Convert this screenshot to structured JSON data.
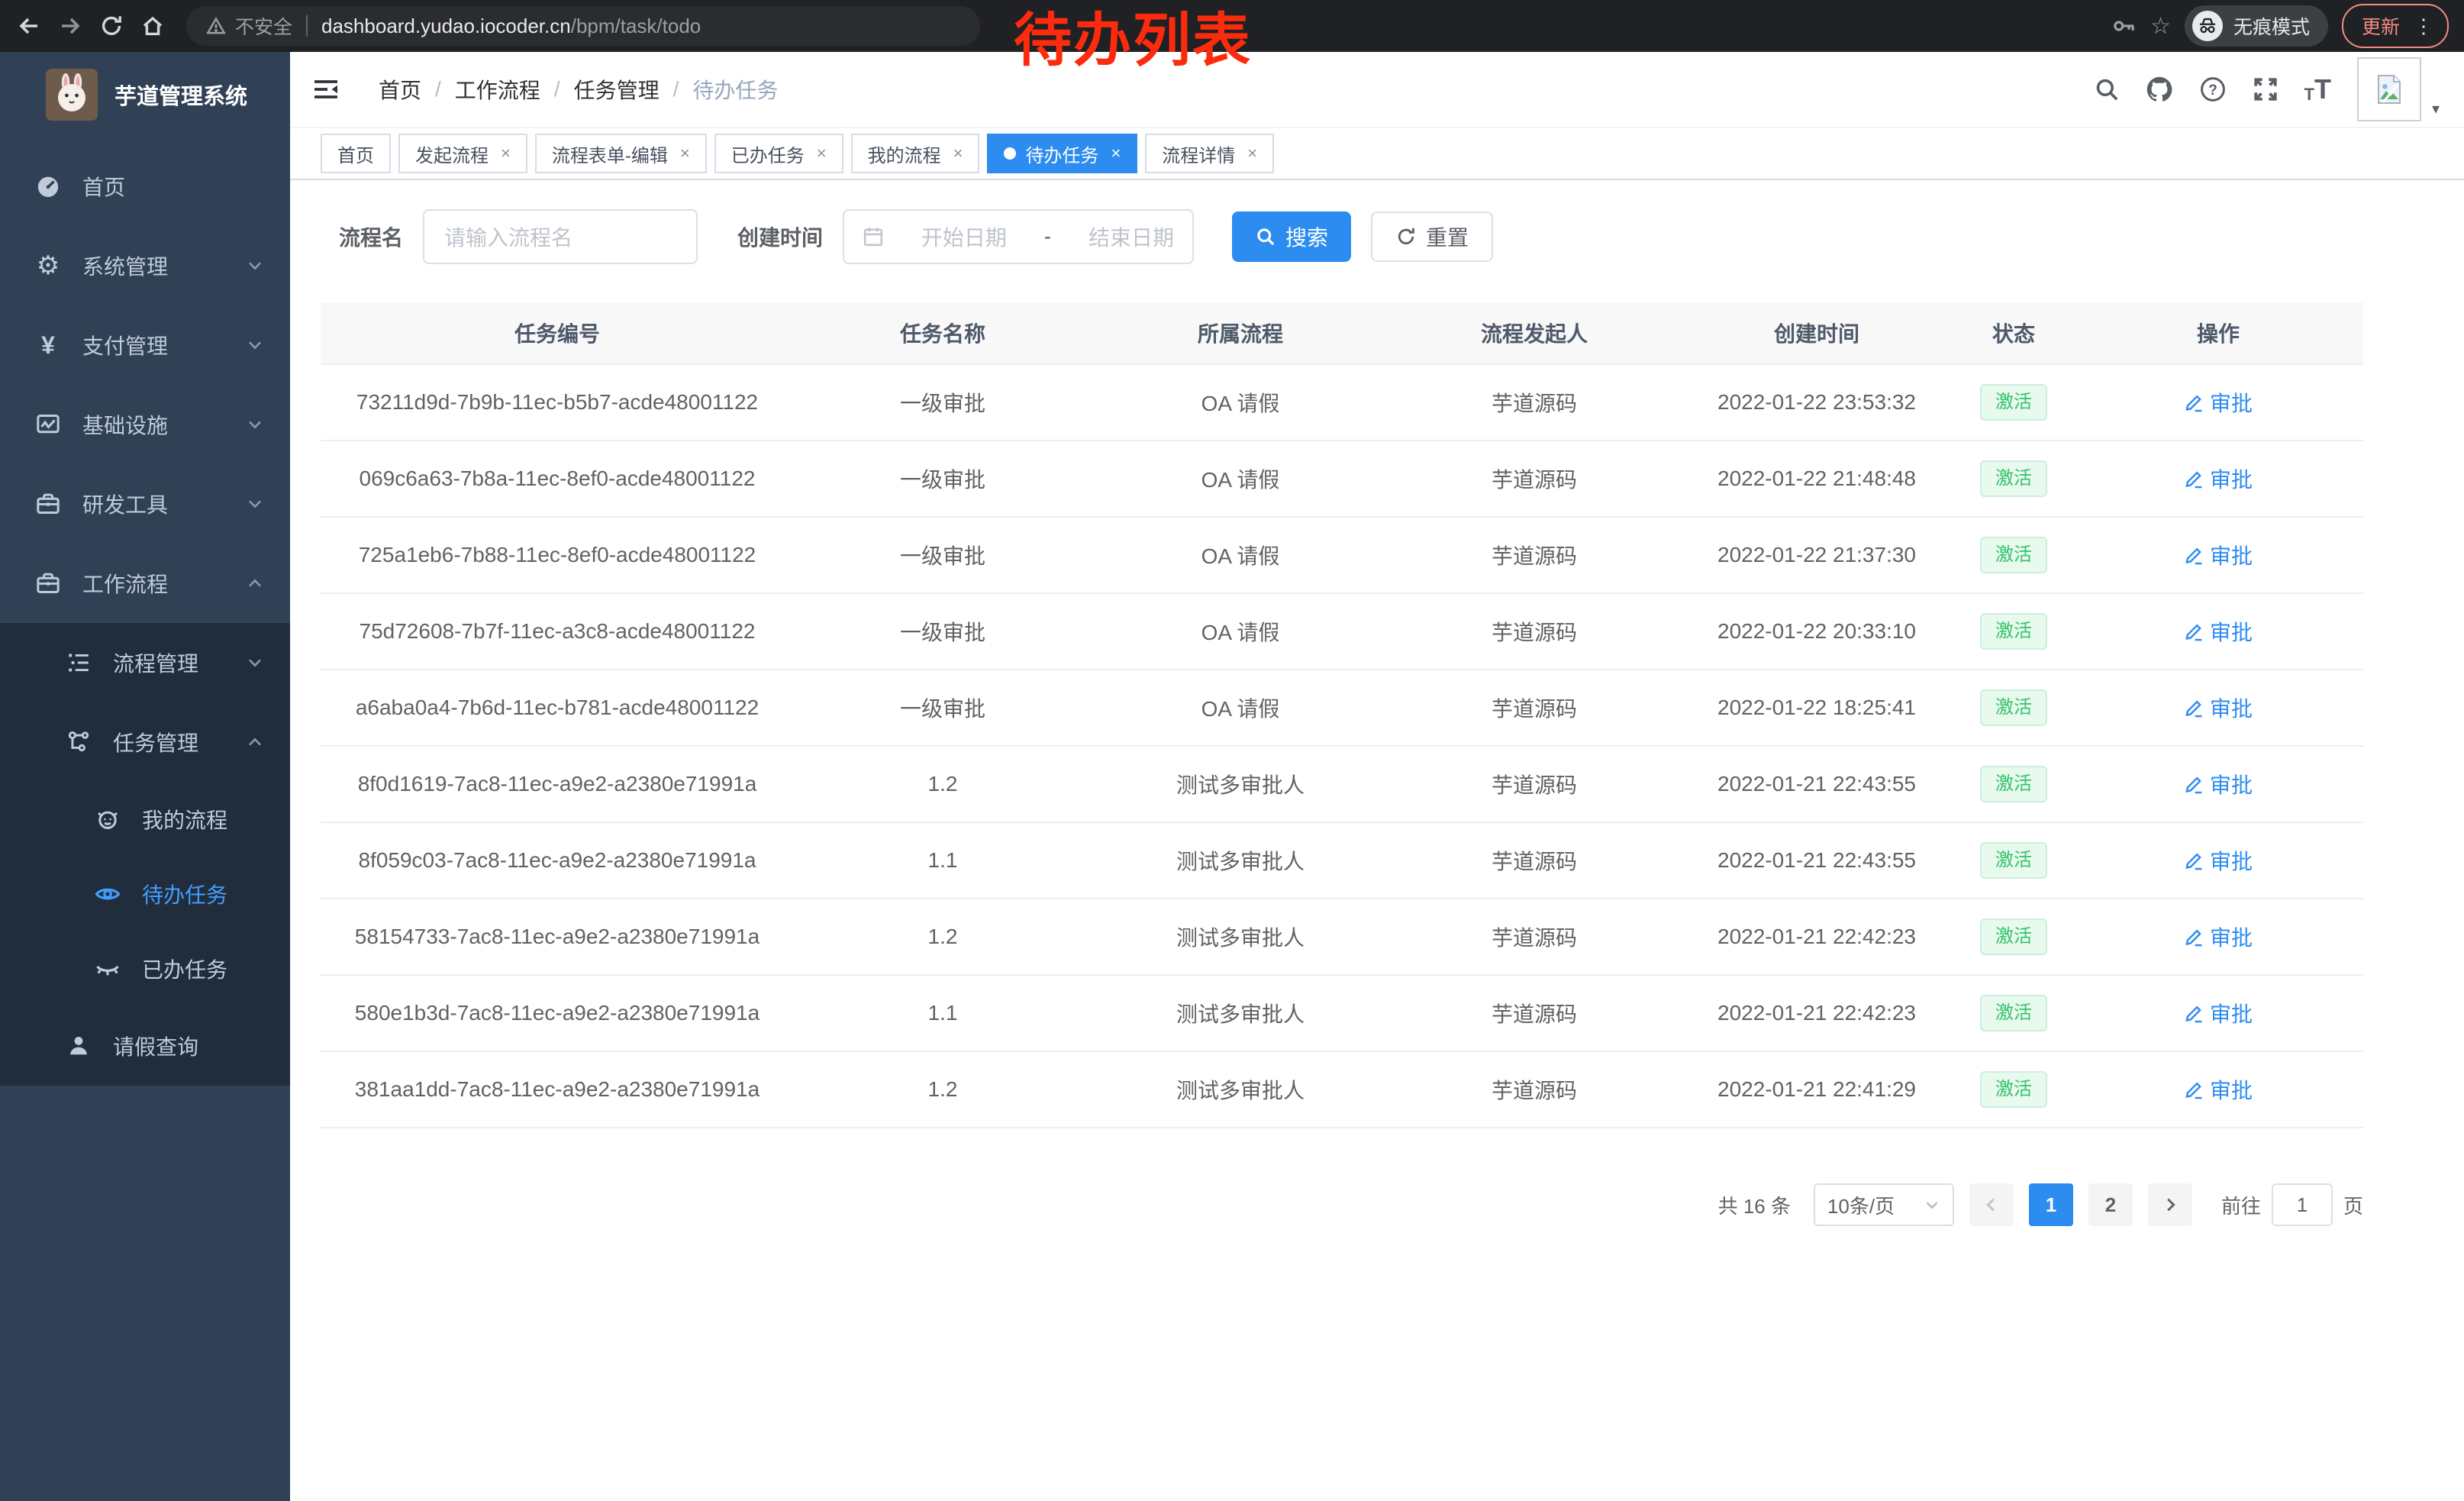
{
  "browser": {
    "security_label": "不安全",
    "url_host": "dashboard.yudao.iocoder.cn",
    "url_path": "/bpm/task/todo",
    "incognito_label": "无痕模式",
    "update_label": "更新",
    "menu_glyph": "⋮",
    "star_glyph": "☆"
  },
  "annotation": {
    "text": "待办列表"
  },
  "colors": {
    "accent_blue": "#2d8cf0",
    "sidebar_active": "#409eff",
    "status_green": "#35c26a",
    "annotation_red": "#fd2b0e"
  },
  "sidebar": {
    "title": "芋道管理系统",
    "menu": [
      {
        "name": "home",
        "icon": "dashboard-icon",
        "label": "首页"
      },
      {
        "name": "system-management",
        "icon": "gear-icon",
        "label": "系统管理",
        "chevron": "down"
      },
      {
        "name": "payment-management",
        "icon": "yen-icon",
        "label": "支付管理",
        "chevron": "down"
      },
      {
        "name": "infrastructure",
        "icon": "infra-icon",
        "label": "基础设施",
        "chevron": "down"
      },
      {
        "name": "dev-tools",
        "icon": "toolbox-icon",
        "label": "研发工具",
        "chevron": "down"
      },
      {
        "name": "workflow",
        "icon": "workflow-icon",
        "label": "工作流程",
        "chevron": "up",
        "children": [
          {
            "name": "process-management",
            "icon": "process-list-icon",
            "label": "流程管理",
            "chevron": "down"
          },
          {
            "name": "task-management",
            "icon": "task-tree-icon",
            "label": "任务管理",
            "chevron": "up",
            "children": [
              {
                "name": "my-process",
                "icon": "my-process-icon",
                "label": "我的流程"
              },
              {
                "name": "todo-task",
                "icon": "eye-icon",
                "label": "待办任务",
                "active": true
              },
              {
                "name": "done-task",
                "icon": "eye-closed-icon",
                "label": "已办任务"
              }
            ]
          },
          {
            "name": "leave-query",
            "icon": "user-icon",
            "label": "请假查询"
          }
        ]
      }
    ]
  },
  "header": {
    "breadcrumb": {
      "items": [
        "首页",
        "工作流程",
        "任务管理",
        "待办任务"
      ],
      "separator": "/"
    }
  },
  "tabs": {
    "close_glyph": "×",
    "items": [
      {
        "name": "tab-home",
        "label": "首页",
        "closable": false
      },
      {
        "name": "tab-start-process",
        "label": "发起流程",
        "closable": true
      },
      {
        "name": "tab-process-form-edit",
        "label": "流程表单-编辑",
        "closable": true
      },
      {
        "name": "tab-done-task",
        "label": "已办任务",
        "closable": true
      },
      {
        "name": "tab-my-process",
        "label": "我的流程",
        "closable": true
      },
      {
        "name": "tab-todo-task",
        "label": "待办任务",
        "closable": true,
        "active": true
      },
      {
        "name": "tab-process-detail",
        "label": "流程详情",
        "closable": true
      }
    ]
  },
  "filters": {
    "name_label": "流程名",
    "name_placeholder": "请输入流程名",
    "time_label": "创建时间",
    "start_placeholder": "开始日期",
    "range_separator": "-",
    "end_placeholder": "结束日期",
    "search_label": "搜索",
    "reset_label": "重置"
  },
  "table": {
    "columns": [
      "任务编号",
      "任务名称",
      "所属流程",
      "流程发起人",
      "创建时间",
      "状态",
      "操作"
    ],
    "status_active_label": "激活",
    "approve_label": "审批",
    "rows": [
      {
        "id": "73211d9d-7b9b-11ec-b5b7-acde48001122",
        "task": "一级审批",
        "process": "OA 请假",
        "starter": "芋道源码",
        "created": "2022-01-22 23:53:32"
      },
      {
        "id": "069c6a63-7b8a-11ec-8ef0-acde48001122",
        "task": "一级审批",
        "process": "OA 请假",
        "starter": "芋道源码",
        "created": "2022-01-22 21:48:48"
      },
      {
        "id": "725a1eb6-7b88-11ec-8ef0-acde48001122",
        "task": "一级审批",
        "process": "OA 请假",
        "starter": "芋道源码",
        "created": "2022-01-22 21:37:30"
      },
      {
        "id": "75d72608-7b7f-11ec-a3c8-acde48001122",
        "task": "一级审批",
        "process": "OA 请假",
        "starter": "芋道源码",
        "created": "2022-01-22 20:33:10"
      },
      {
        "id": "a6aba0a4-7b6d-11ec-b781-acde48001122",
        "task": "一级审批",
        "process": "OA 请假",
        "starter": "芋道源码",
        "created": "2022-01-22 18:25:41"
      },
      {
        "id": "8f0d1619-7ac8-11ec-a9e2-a2380e71991a",
        "task": "1.2",
        "process": "测试多审批人",
        "starter": "芋道源码",
        "created": "2022-01-21 22:43:55"
      },
      {
        "id": "8f059c03-7ac8-11ec-a9e2-a2380e71991a",
        "task": "1.1",
        "process": "测试多审批人",
        "starter": "芋道源码",
        "created": "2022-01-21 22:43:55"
      },
      {
        "id": "58154733-7ac8-11ec-a9e2-a2380e71991a",
        "task": "1.2",
        "process": "测试多审批人",
        "starter": "芋道源码",
        "created": "2022-01-21 22:42:23"
      },
      {
        "id": "580e1b3d-7ac8-11ec-a9e2-a2380e71991a",
        "task": "1.1",
        "process": "测试多审批人",
        "starter": "芋道源码",
        "created": "2022-01-21 22:42:23"
      },
      {
        "id": "381aa1dd-7ac8-11ec-a9e2-a2380e71991a",
        "task": "1.2",
        "process": "测试多审批人",
        "starter": "芋道源码",
        "created": "2022-01-21 22:41:29"
      }
    ]
  },
  "pagination": {
    "total_label": "共 16 条",
    "page_size_label": "10条/页",
    "pages": [
      "1",
      "2"
    ],
    "current_page": "1",
    "goto_label": "前往",
    "goto_value": "1",
    "goto_suffix": "页"
  }
}
